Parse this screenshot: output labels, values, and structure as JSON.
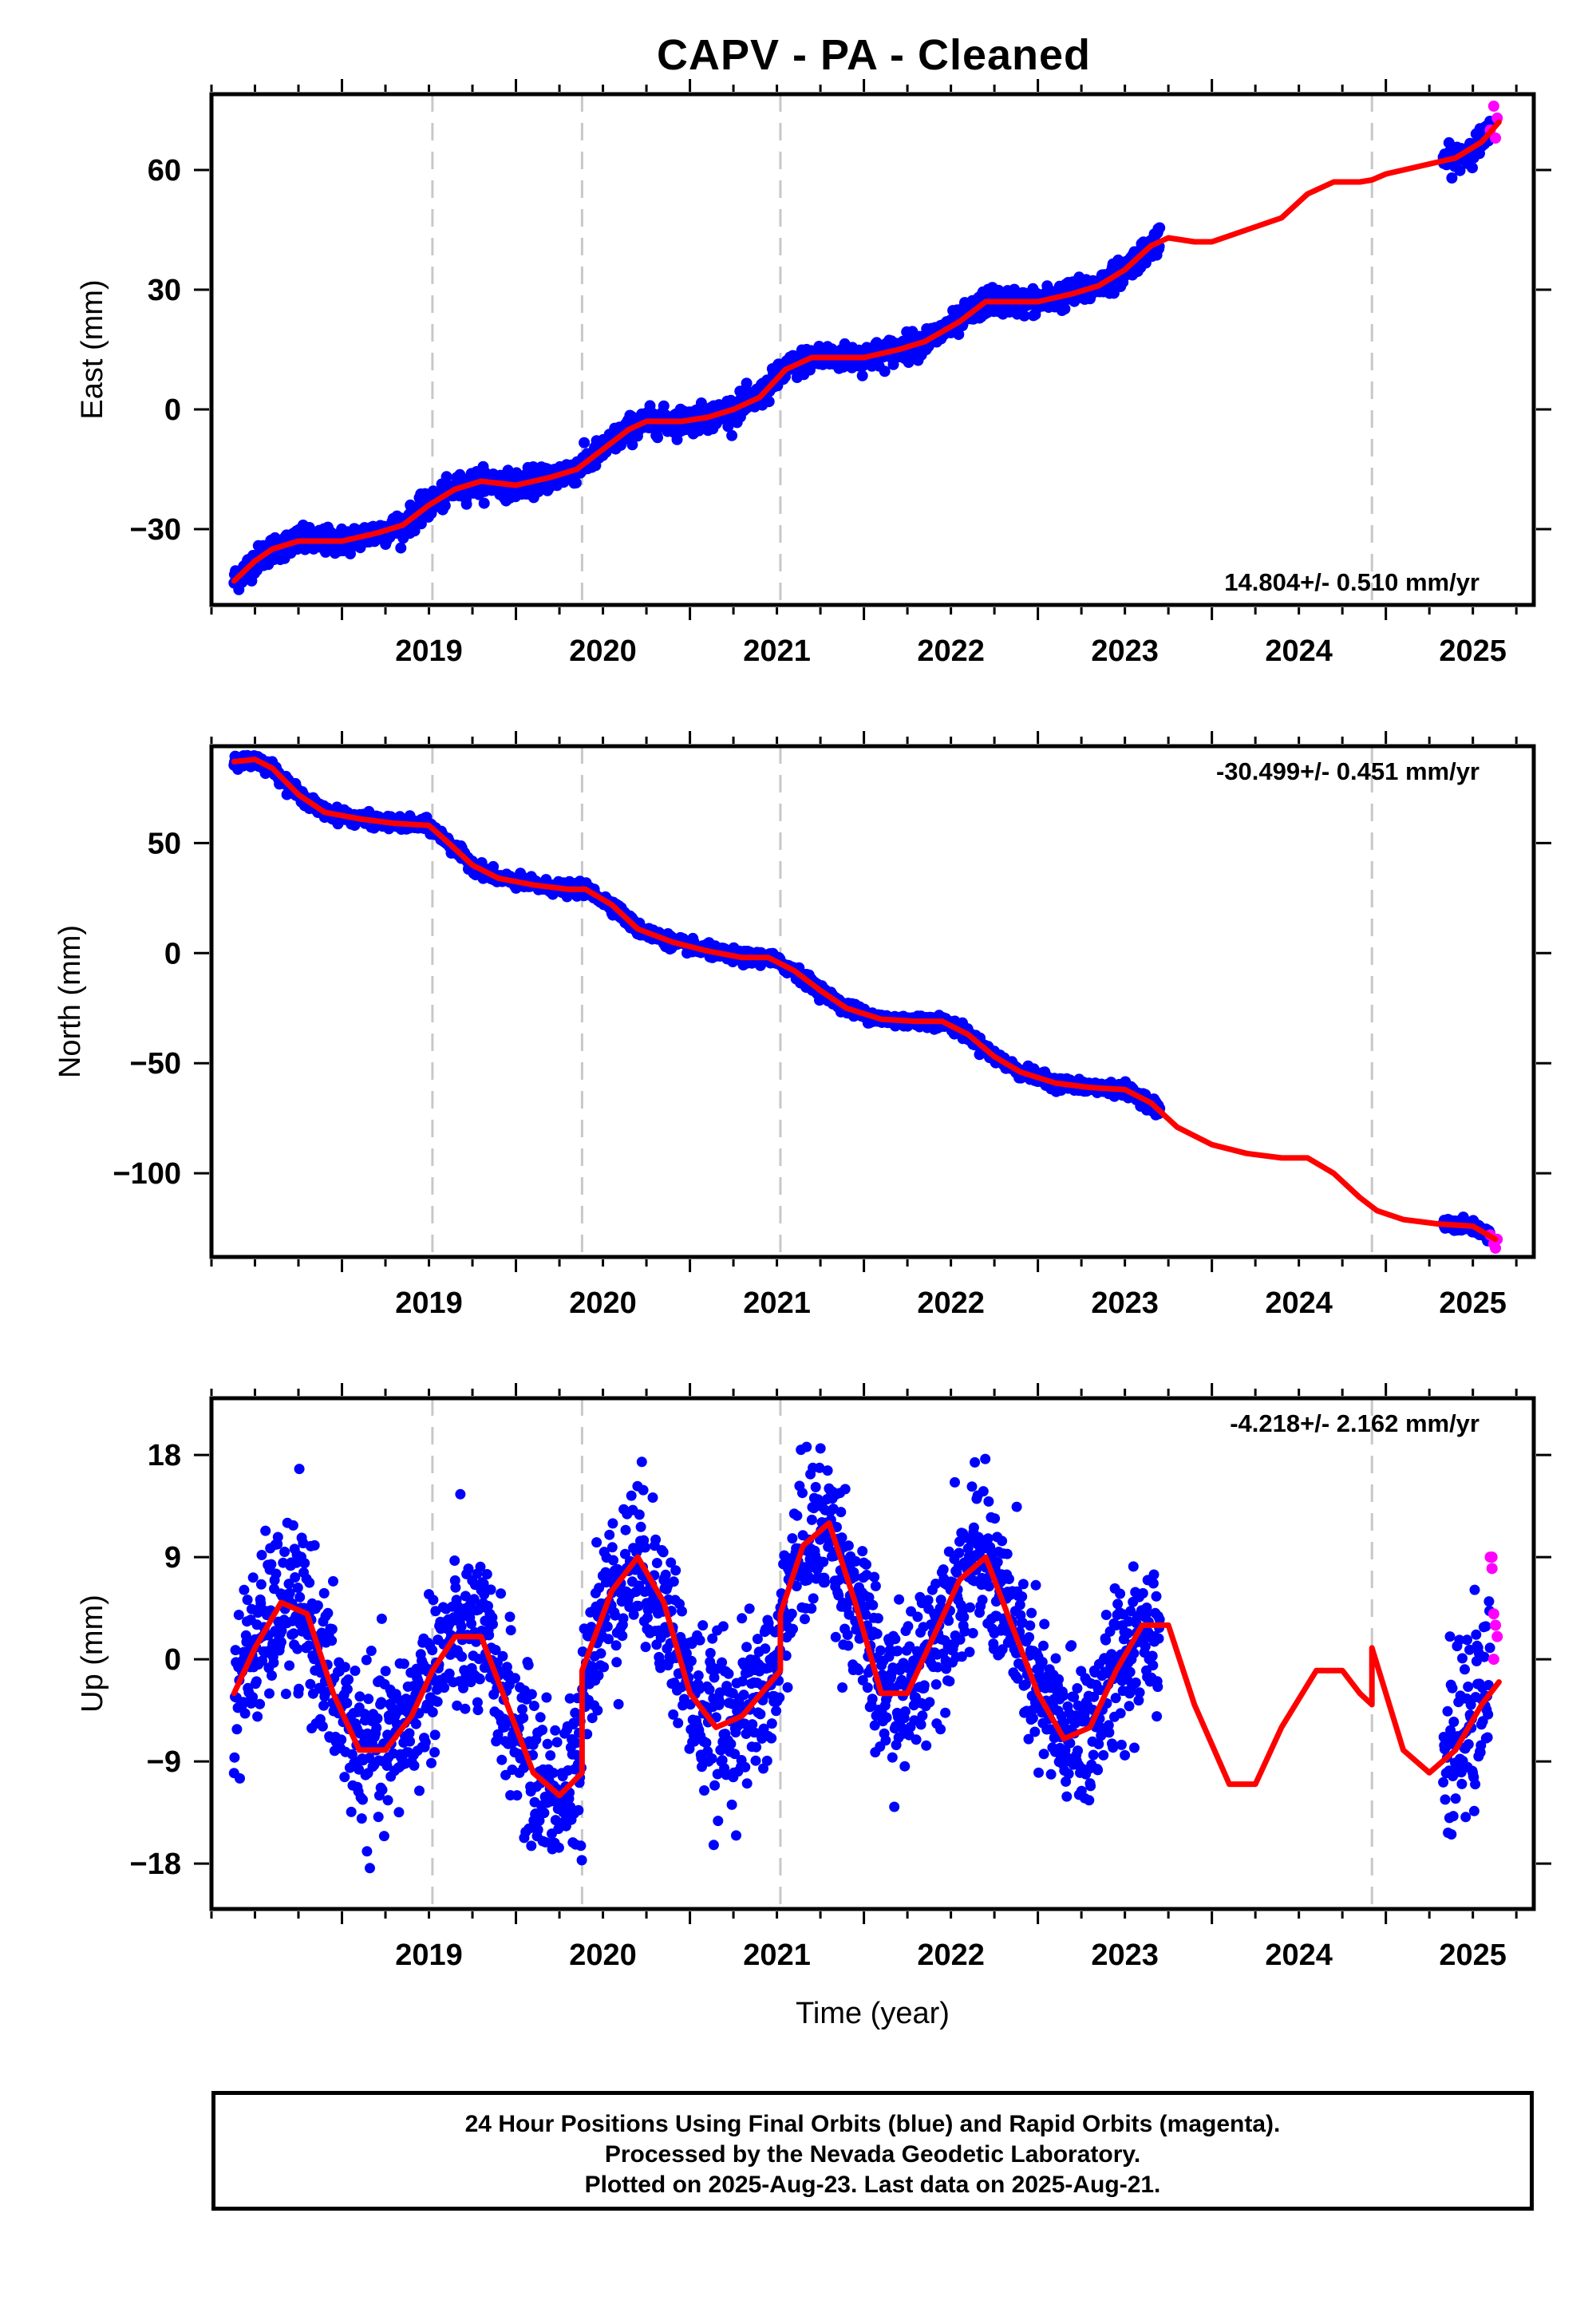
{
  "title": "CAPV  - PA - Cleaned",
  "footer": {
    "line1": "24 Hour Positions Using Final Orbits (blue) and Rapid Orbits (magenta).",
    "line2": "Processed by the Nevada Geodetic Laboratory.",
    "line3": "Plotted on 2025-Aug-23. Last data on 2025-Aug-21."
  },
  "colors": {
    "final_orbits": "#0000ff",
    "rapid_orbits": "#ff00ff",
    "model": "#ff0000",
    "event_lines": "#c8c8c8"
  },
  "chart_data": [
    {
      "type": "scatter",
      "id": "east",
      "ylabel": "East (mm)",
      "xlabel": "",
      "rate_label": "14.804+/- 0.510 mm/yr",
      "xlim": [
        2018.25,
        2025.85
      ],
      "ylim": [
        -49,
        79
      ],
      "yticks": [
        -30,
        0,
        30,
        60
      ],
      "yticklabels": [
        "−30",
        "0",
        "30",
        "60"
      ],
      "xticks": [
        2019,
        2020,
        2021,
        2022,
        2023,
        2024,
        2025
      ],
      "xticklabels": [
        "2019",
        "2020",
        "2021",
        "2022",
        "2023",
        "2024",
        "2025"
      ],
      "event_lines": [
        2019.52,
        2020.38,
        2021.52,
        2024.92
      ],
      "model": {
        "x": [
          2018.38,
          2018.5,
          2018.6,
          2018.75,
          2018.9,
          2019.0,
          2019.2,
          2019.35,
          2019.5,
          2019.65,
          2019.8,
          2020.0,
          2020.2,
          2020.35,
          2020.5,
          2020.65,
          2020.75,
          2020.95,
          2021.1,
          2021.25,
          2021.4,
          2021.55,
          2021.7,
          2021.85,
          2022.0,
          2022.2,
          2022.35,
          2022.55,
          2022.7,
          2022.85,
          2023.0,
          2023.2,
          2023.35,
          2023.5,
          2023.65,
          2023.75,
          2023.9,
          2024.0,
          2024.2,
          2024.4,
          2024.55,
          2024.7,
          2024.85,
          2024.92,
          2025.0,
          2025.2,
          2025.4,
          2025.55,
          2025.65
        ],
        "y": [
          -43,
          -38,
          -35,
          -33,
          -33,
          -33,
          -31,
          -29,
          -24,
          -20,
          -18,
          -19,
          -17,
          -15,
          -10,
          -5,
          -3,
          -3,
          -2,
          0,
          3,
          10,
          13,
          13,
          13,
          15,
          17,
          22,
          27,
          27,
          27,
          29,
          31,
          35,
          41,
          43,
          42,
          42,
          45,
          48,
          54,
          57,
          57,
          57.5,
          59,
          61,
          63,
          67,
          72
        ]
      },
      "final_data": {
        "x_range": [
          2018.38,
          2023.7
        ],
        "extra_x_range": [
          2025.33,
          2025.6
        ],
        "scatter_mm": 1.6
      },
      "rapid_data": {
        "x": [
          2025.6,
          2025.62,
          2025.63,
          2025.64
        ],
        "y": [
          70,
          76,
          68,
          73
        ]
      }
    },
    {
      "type": "scatter",
      "id": "north",
      "ylabel": "North (mm)",
      "xlabel": "",
      "rate_label": "-30.499+/- 0.451 mm/yr",
      "xlim": [
        2018.25,
        2025.85
      ],
      "ylim": [
        -138,
        94
      ],
      "yticks": [
        -100,
        -50,
        0,
        50
      ],
      "yticklabels": [
        "−100",
        "−50",
        "0",
        "50"
      ],
      "xticks": [
        2019,
        2020,
        2021,
        2022,
        2023,
        2024,
        2025
      ],
      "xticklabels": [
        "2019",
        "2020",
        "2021",
        "2022",
        "2023",
        "2024",
        "2025"
      ],
      "event_lines": [
        2019.52,
        2020.38,
        2021.52,
        2024.92
      ],
      "model": {
        "x": [
          2018.38,
          2018.5,
          2018.6,
          2018.75,
          2018.9,
          2019.1,
          2019.3,
          2019.5,
          2019.6,
          2019.75,
          2019.9,
          2020.1,
          2020.3,
          2020.4,
          2020.55,
          2020.7,
          2020.9,
          2021.1,
          2021.3,
          2021.45,
          2021.6,
          2021.75,
          2021.9,
          2022.1,
          2022.3,
          2022.45,
          2022.6,
          2022.75,
          2022.9,
          2023.1,
          2023.3,
          2023.5,
          2023.65,
          2023.8,
          2024.0,
          2024.2,
          2024.4,
          2024.55,
          2024.7,
          2024.85,
          2024.95,
          2025.1,
          2025.3,
          2025.5,
          2025.63
        ],
        "y": [
          87,
          88,
          84,
          72,
          64,
          61,
          59,
          58,
          51,
          40,
          34,
          31,
          29,
          29,
          22,
          11,
          5,
          1,
          -2,
          -2,
          -8,
          -17,
          -25,
          -30,
          -31,
          -31,
          -37,
          -47,
          -54,
          -59,
          -61,
          -62,
          -68,
          -79,
          -87,
          -91,
          -93,
          -93,
          -100,
          -111,
          -117,
          -121,
          -123,
          -124,
          -130
        ]
      },
      "final_data": {
        "x_range": [
          2018.38,
          2023.7
        ],
        "extra_x_range": [
          2025.33,
          2025.6
        ],
        "scatter_mm": 1.4
      },
      "rapid_data": {
        "x": [
          2025.6,
          2025.62,
          2025.63,
          2025.64
        ],
        "y": [
          -128,
          -132,
          -134,
          -130
        ]
      }
    },
    {
      "type": "scatter",
      "id": "up",
      "ylabel": "Up (mm)",
      "xlabel": "Time (year)",
      "rate_label": "-4.218+/- 2.162 mm/yr",
      "xlim": [
        2018.25,
        2025.85
      ],
      "ylim": [
        -22,
        23
      ],
      "yticks": [
        -18,
        -9,
        0,
        9,
        18
      ],
      "yticklabels": [
        "−18",
        "−9",
        "0",
        "9",
        "18"
      ],
      "xticks": [
        2019,
        2020,
        2021,
        2022,
        2023,
        2024,
        2025
      ],
      "xticklabels": [
        "2019",
        "2020",
        "2021",
        "2022",
        "2023",
        "2024",
        "2025"
      ],
      "event_lines": [
        2019.52,
        2020.38,
        2021.52,
        2024.92
      ],
      "model": {
        "x": [
          2018.38,
          2018.5,
          2018.65,
          2018.8,
          2018.95,
          2019.1,
          2019.25,
          2019.4,
          2019.52,
          2019.65,
          2019.8,
          2019.95,
          2020.1,
          2020.25,
          2020.38,
          2020.38,
          2020.55,
          2020.7,
          2020.85,
          2021.0,
          2021.15,
          2021.3,
          2021.52,
          2021.52,
          2021.65,
          2021.8,
          2021.95,
          2022.1,
          2022.25,
          2022.4,
          2022.55,
          2022.7,
          2022.85,
          2023.0,
          2023.15,
          2023.3,
          2023.45,
          2023.6,
          2023.75,
          2023.9,
          2024.1,
          2024.25,
          2024.4,
          2024.6,
          2024.75,
          2024.85,
          2024.92,
          2024.92,
          2025.0,
          2025.1,
          2025.25,
          2025.4,
          2025.55,
          2025.65
        ],
        "y": [
          -3,
          1,
          5,
          4,
          -3,
          -8,
          -8,
          -5,
          -1,
          2,
          2,
          -4,
          -10,
          -12,
          -10,
          -1,
          6,
          9,
          5,
          -3,
          -6,
          -5,
          -1,
          4,
          10,
          12,
          5,
          -3,
          -3,
          2,
          7,
          9,
          3,
          -3,
          -7,
          -6,
          -1,
          3,
          3,
          -4,
          -11,
          -11,
          -6,
          -1,
          -1,
          -3,
          -4,
          1,
          -3,
          -8,
          -10,
          -8,
          -4,
          -2
        ]
      },
      "final_data": {
        "x_range": [
          2018.38,
          2023.7
        ],
        "extra_x_range": [
          2025.33,
          2025.6
        ],
        "scatter_mm": 3.5
      },
      "rapid_data": {
        "x": [
          2025.6,
          2025.61,
          2025.62,
          2025.63,
          2025.64,
          2025.62,
          2025.61
        ],
        "y": [
          9,
          8,
          4,
          3,
          2,
          0,
          9
        ]
      }
    }
  ]
}
